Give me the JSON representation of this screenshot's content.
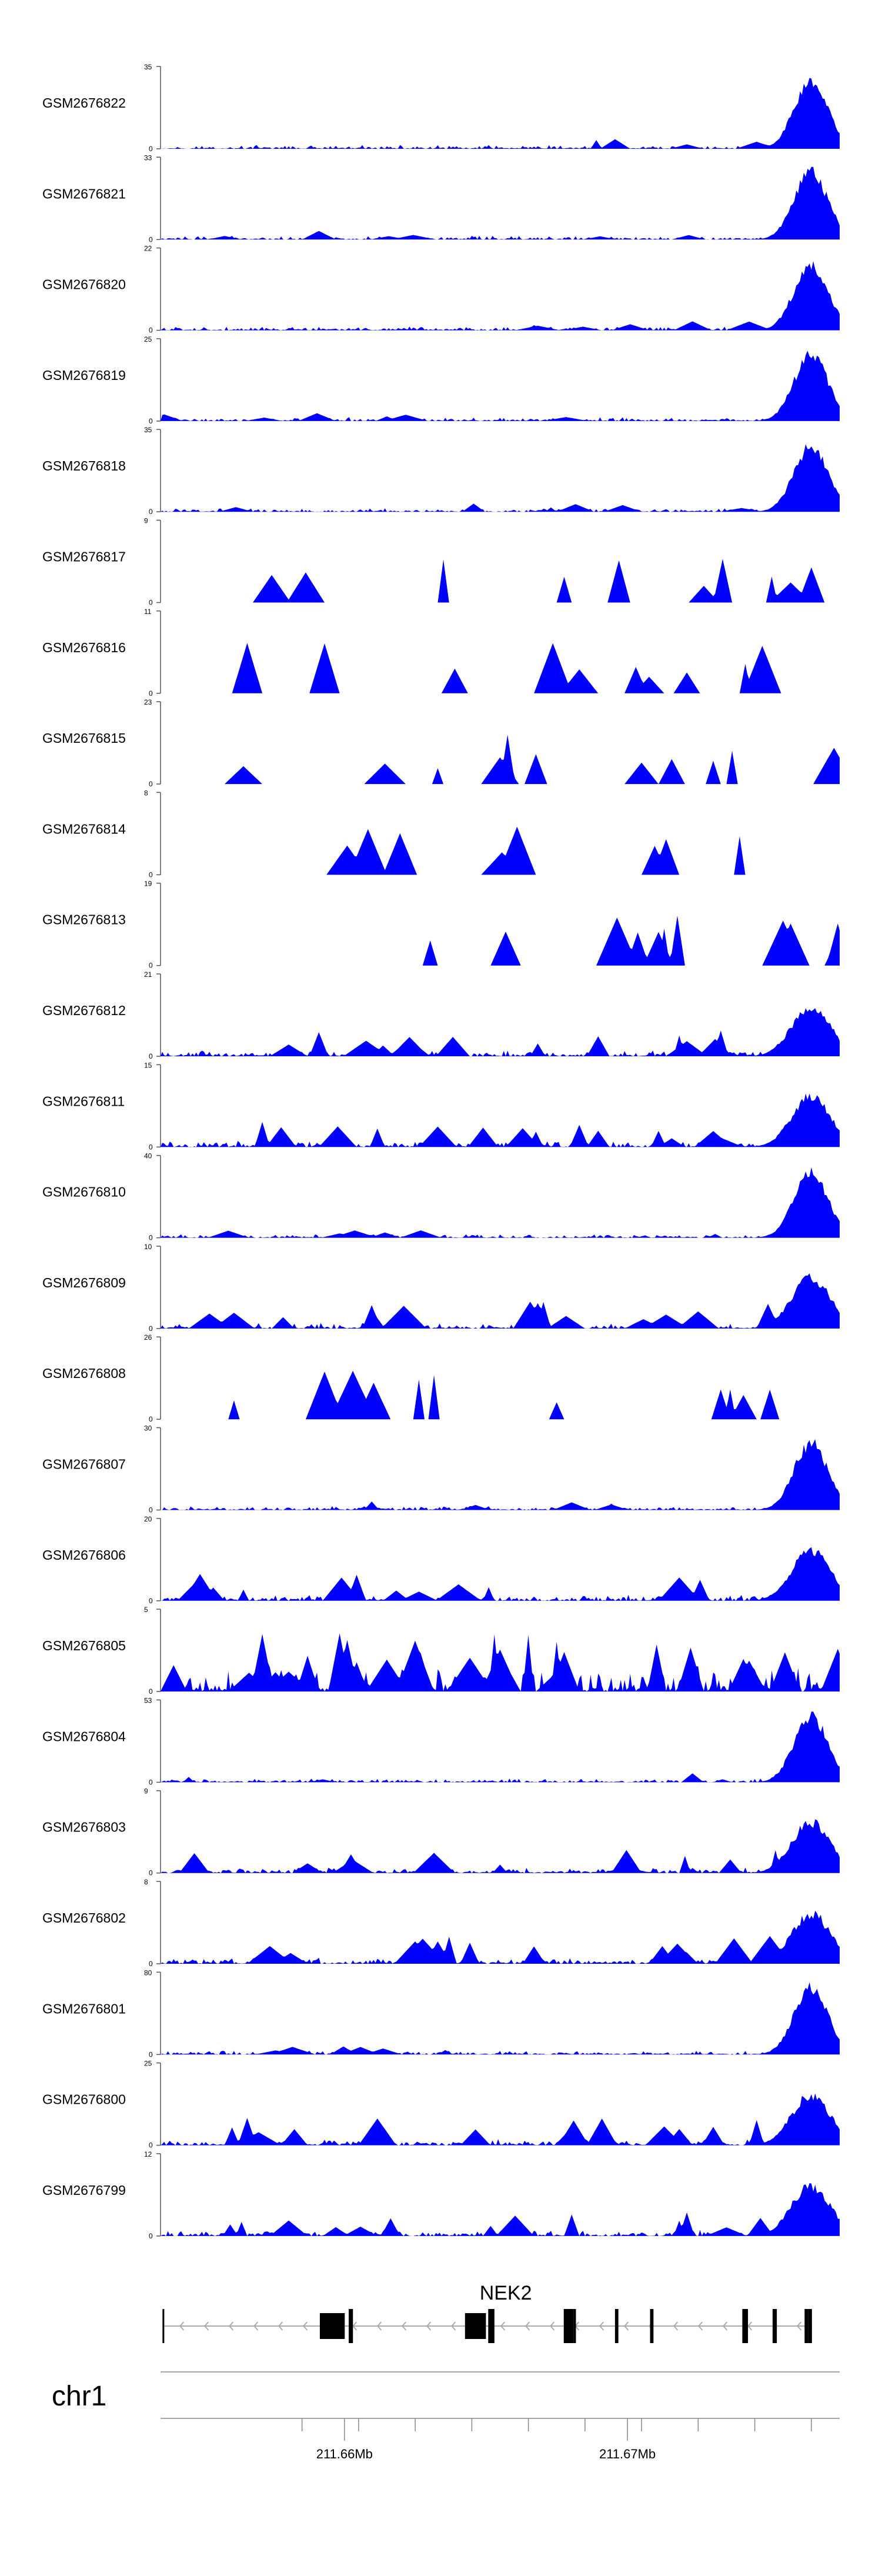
{
  "chart_data": {
    "type": "area",
    "title": "",
    "region": {
      "chromosome": "chr1",
      "start_mb": 211.6535,
      "end_mb": 211.6775
    },
    "colors": {
      "signal": "#0000ff",
      "axis": "#555555",
      "gene": "#000000",
      "strand_arrow": "#aaaaaa"
    },
    "tracks": [
      {
        "name": "GSM2676822",
        "ymin": "0",
        "ymax": "35"
      },
      {
        "name": "GSM2676821",
        "ymin": "0",
        "ymax": "33"
      },
      {
        "name": "GSM2676820",
        "ymin": "0",
        "ymax": "22"
      },
      {
        "name": "GSM2676819",
        "ymin": "0",
        "ymax": "25"
      },
      {
        "name": "GSM2676818",
        "ymin": "0",
        "ymax": "35"
      },
      {
        "name": "GSM2676817",
        "ymin": "0",
        "ymax": "9"
      },
      {
        "name": "GSM2676816",
        "ymin": "0",
        "ymax": "11"
      },
      {
        "name": "GSM2676815",
        "ymin": "0",
        "ymax": "23"
      },
      {
        "name": "GSM2676814",
        "ymin": "0",
        "ymax": "8"
      },
      {
        "name": "GSM2676813",
        "ymin": "0",
        "ymax": "19"
      },
      {
        "name": "GSM2676812",
        "ymin": "0",
        "ymax": "21"
      },
      {
        "name": "GSM2676811",
        "ymin": "0",
        "ymax": "15"
      },
      {
        "name": "GSM2676810",
        "ymin": "0",
        "ymax": "40"
      },
      {
        "name": "GSM2676809",
        "ymin": "0",
        "ymax": "10"
      },
      {
        "name": "GSM2676808",
        "ymin": "0",
        "ymax": "26"
      },
      {
        "name": "GSM2676807",
        "ymin": "0",
        "ymax": "30"
      },
      {
        "name": "GSM2676806",
        "ymin": "0",
        "ymax": "20"
      },
      {
        "name": "GSM2676805",
        "ymin": "0",
        "ymax": "5"
      },
      {
        "name": "GSM2676804",
        "ymin": "0",
        "ymax": "53"
      },
      {
        "name": "GSM2676803",
        "ymin": "0",
        "ymax": "9"
      },
      {
        "name": "GSM2676802",
        "ymin": "0",
        "ymax": "8"
      },
      {
        "name": "GSM2676801",
        "ymin": "0",
        "ymax": "80"
      },
      {
        "name": "GSM2676800",
        "ymin": "0",
        "ymax": "25"
      },
      {
        "name": "GSM2676799",
        "ymin": "0",
        "ymax": "12"
      }
    ],
    "gene": {
      "name": "NEK2",
      "strand": "-",
      "exons_mb": [
        [
          211.65357,
          211.65362
        ],
        [
          211.65913,
          211.66001
        ],
        [
          211.66015,
          211.6603
        ],
        [
          211.66426,
          211.665
        ],
        [
          211.66508,
          211.6653
        ],
        [
          211.66775,
          211.66809
        ],
        [
          211.66809,
          211.66818
        ],
        [
          211.66956,
          211.66968
        ],
        [
          211.6708,
          211.67092
        ],
        [
          211.67406,
          211.67426
        ],
        [
          211.67513,
          211.67528
        ],
        [
          211.67626,
          211.67638
        ],
        [
          211.67638,
          211.67652
        ]
      ]
    },
    "x_axis": {
      "ticks_mb": [
        211.6585,
        211.6605,
        211.6625,
        211.6645,
        211.6665,
        211.6685,
        211.6705,
        211.6725,
        211.6745,
        211.6765
      ],
      "labels": [
        {
          "at": 211.66,
          "text": "211.66Mb"
        },
        {
          "at": 211.67,
          "text": "211.67Mb"
        }
      ]
    },
    "chromosome_label": "chr1"
  }
}
